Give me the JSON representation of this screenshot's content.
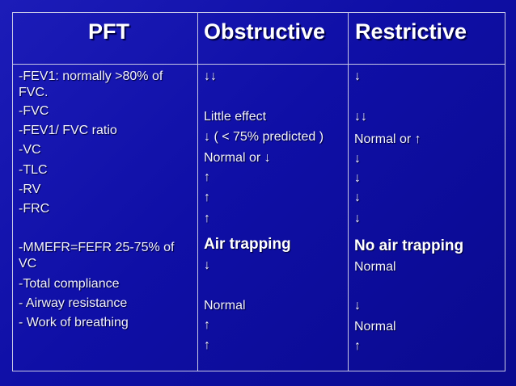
{
  "table": {
    "headers": {
      "pft": "PFT",
      "obstructive": "Obstructive",
      "restrictive": "Restrictive"
    },
    "pft_column": [
      "-FEV1: normally >80% of",
      "FVC.",
      "-FVC",
      "-FEV1/ FVC ratio",
      "-VC",
      "-TLC",
      "-RV",
      "-FRC",
      "-MMEFR=FEFR 25-75% of",
      "VC",
      "-Total compliance",
      "- Airway resistance",
      "- Work of breathing"
    ],
    "obstructive_column": [
      "↓↓",
      "Little effect",
      "↓ ( < 75% predicted )",
      "Normal or ↓",
      "↑",
      "↑",
      "↑",
      "Air trapping",
      "↓",
      "Normal",
      "↑",
      "↑"
    ],
    "restrictive_column": [
      "↓",
      "↓↓",
      "Normal or ↑",
      "↓",
      "↓",
      "↓",
      "↓",
      "No air trapping",
      "Normal",
      "↓",
      "Normal",
      "↑"
    ]
  }
}
